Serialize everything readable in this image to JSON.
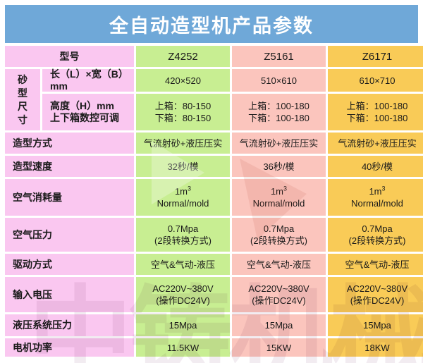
{
  "title": "全自动造型机产品参数",
  "watermark": {
    "text": "中铸机械"
  },
  "colors": {
    "header_blue": "#6FA8D8",
    "label_pink": "#FAC7F0",
    "col_green": "#C8EE92",
    "col_salmon": "#FBC5BD",
    "col_yellow": "#F9CB57"
  },
  "table": {
    "header": {
      "label": "型号",
      "models": [
        "Z4252",
        "Z5161",
        "Z6171"
      ]
    },
    "sand_group": {
      "group_label": "砂型尺寸",
      "sub_rows": [
        {
          "label": [
            "长（L）×宽（B）mm"
          ],
          "values": [
            [
              "420×520"
            ],
            [
              "510×610"
            ],
            [
              "610×710"
            ]
          ]
        },
        {
          "label": [
            "高度（H）mm",
            "上下箱数控可调"
          ],
          "values": [
            [
              "上箱：80-150",
              "下箱：80-150"
            ],
            [
              "上箱：100-180",
              "下箱：100-180"
            ],
            [
              "上箱：100-180",
              "下箱：100-180"
            ]
          ]
        }
      ]
    },
    "rows": [
      {
        "label": [
          "造型方式"
        ],
        "values": [
          [
            "气流射砂+液压压实"
          ],
          [
            "气流射砂+液压压实"
          ],
          [
            "气流射砂+液压压实"
          ]
        ]
      },
      {
        "label": [
          "造型速度"
        ],
        "values": [
          [
            "32秒/模"
          ],
          [
            "36秒/模"
          ],
          [
            "40秒/模"
          ]
        ]
      },
      {
        "label": [
          "空气消耗量"
        ],
        "values": [
          [
            "1m³",
            "Normal/mold"
          ],
          [
            "1m³",
            "Normal/mold"
          ],
          [
            "1m³",
            "Normal/mold"
          ]
        ]
      },
      {
        "label": [
          "空气压力"
        ],
        "values": [
          [
            "0.7Mpa",
            "(2段转换方式)"
          ],
          [
            "0.7Mpa",
            "(2段转换方式)"
          ],
          [
            "0.7Mpa",
            "(2段转换方式)"
          ]
        ]
      },
      {
        "label": [
          "驱动方式"
        ],
        "values": [
          [
            "空气&气动-液压"
          ],
          [
            "空气&气动-液压"
          ],
          [
            "空气&气动-液压"
          ]
        ]
      },
      {
        "label": [
          "输入电压"
        ],
        "values": [
          [
            "AC220V~380V",
            "(操作DC24V)"
          ],
          [
            "AC220V~380V",
            "(操作DC24V)"
          ],
          [
            "AC220V~380V",
            "(操作DC24V)"
          ]
        ]
      },
      {
        "label": [
          "液压系统压力"
        ],
        "values": [
          [
            "15Mpa"
          ],
          [
            "15Mpa"
          ],
          [
            "15Mpa"
          ]
        ]
      },
      {
        "label": [
          "电机功率"
        ],
        "values": [
          [
            "11.5KW"
          ],
          [
            "15KW"
          ],
          [
            "18KW"
          ]
        ]
      }
    ]
  }
}
